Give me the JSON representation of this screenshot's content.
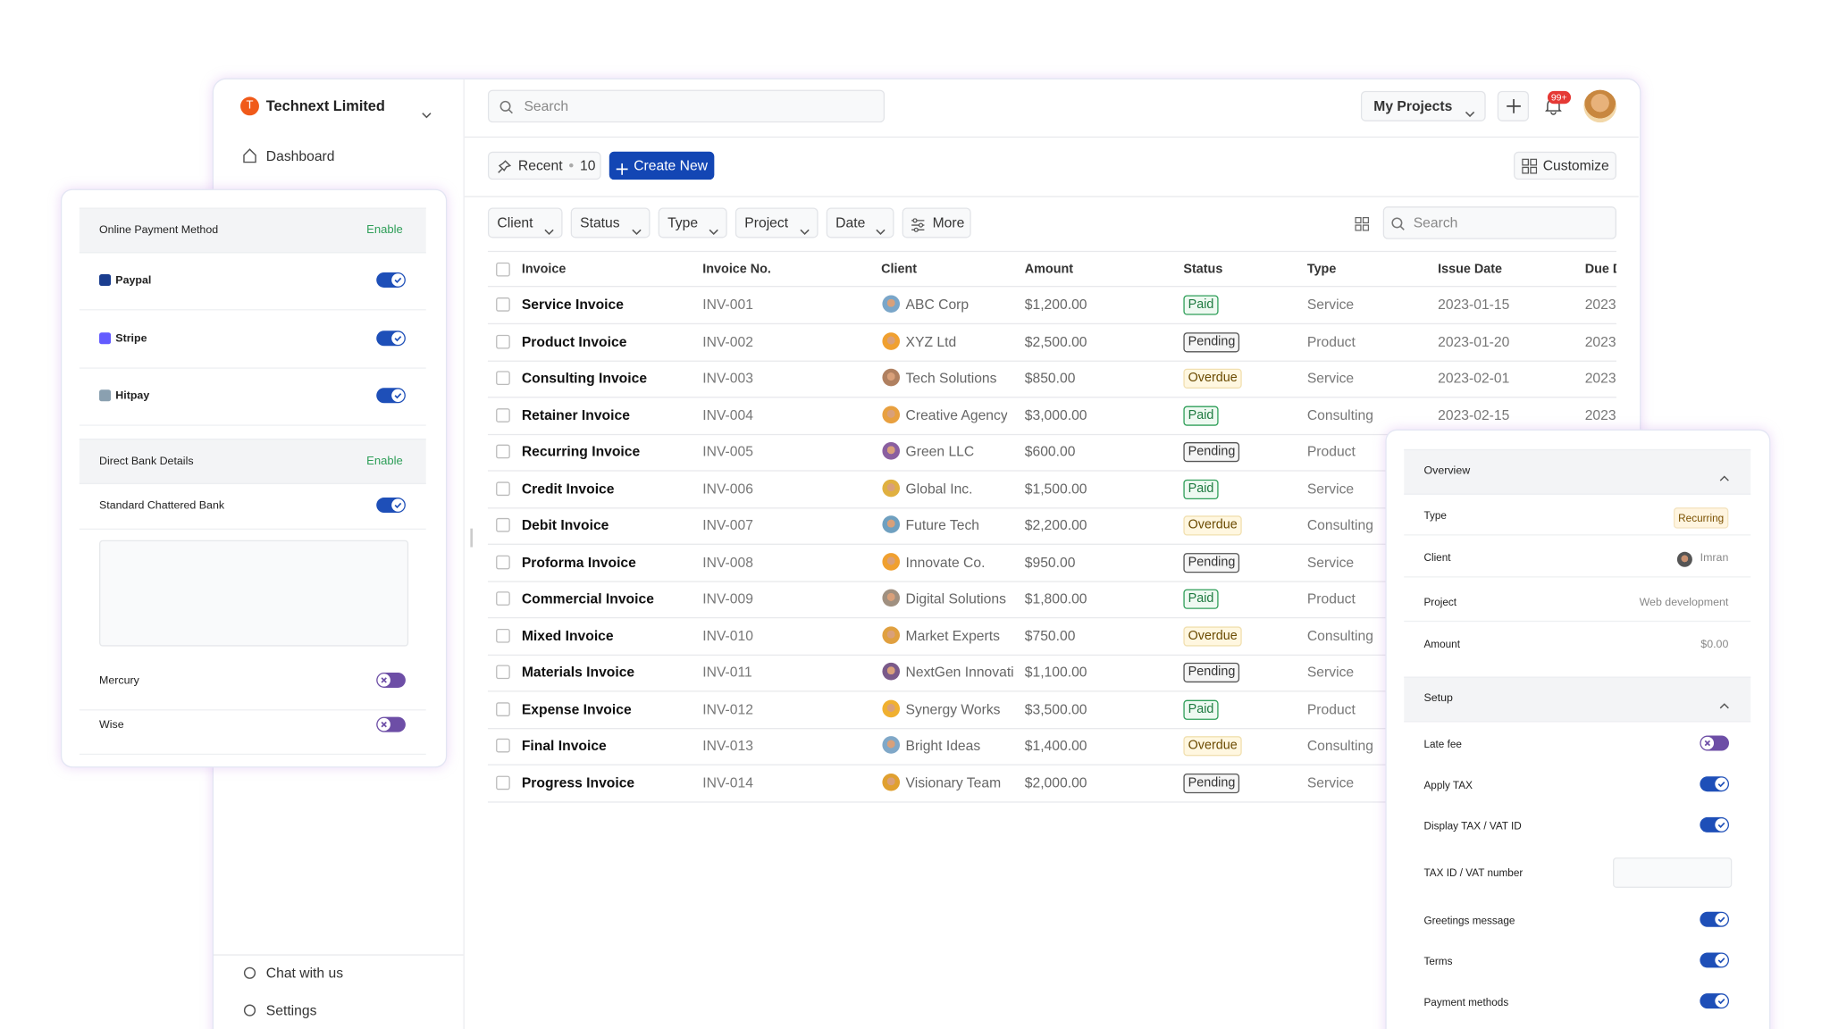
{
  "sidebar": {
    "org_initial": "T",
    "org": "Technext Limited",
    "nav": [
      "Dashboard"
    ],
    "footer": [
      "Chat with us",
      "Settings"
    ]
  },
  "topbar": {
    "search": "Search",
    "projects": "My Projects",
    "badge": "99+"
  },
  "toolbar": {
    "recent": "Recent",
    "recent_count": "10",
    "create": "Create New",
    "customize": "Customize"
  },
  "filters": [
    "Client",
    "Status",
    "Type",
    "Project",
    "Date",
    "More"
  ],
  "filter_search": "Search",
  "table": {
    "columns": [
      "Invoice",
      "Invoice No.",
      "Client",
      "Amount",
      "Status",
      "Type",
      "Issue Date",
      "Due Date"
    ],
    "rows": [
      [
        "Service Invoice",
        "INV-001",
        "ABC Corp",
        "$1,200.00",
        "Paid",
        "Service",
        "2023-01-15",
        "2023"
      ],
      [
        "Product Invoice",
        "INV-002",
        "XYZ Ltd",
        "$2,500.00",
        "Pending",
        "Product",
        "2023-01-20",
        "2023"
      ],
      [
        "Consulting Invoice",
        "INV-003",
        "Tech Solutions",
        "$850.00",
        "Overdue",
        "Service",
        "2023-02-01",
        "2023"
      ],
      [
        "Retainer Invoice",
        "INV-004",
        "Creative Agency",
        "$3,000.00",
        "Paid",
        "Consulting",
        "2023-02-15",
        "2023"
      ],
      [
        "Recurring Invoice",
        "INV-005",
        "Green LLC",
        "$600.00",
        "Pending",
        "Product"
      ],
      [
        "Credit Invoice",
        "INV-006",
        "Global Inc.",
        "$1,500.00",
        "Paid",
        "Service"
      ],
      [
        "Debit Invoice",
        "INV-007",
        "Future Tech",
        "$2,200.00",
        "Overdue",
        "Consulting"
      ],
      [
        "Proforma Invoice",
        "INV-008",
        "Innovate Co.",
        "$950.00",
        "Pending",
        "Service"
      ],
      [
        "Commercial Invoice",
        "INV-009",
        "Digital Solutions",
        "$1,800.00",
        "Paid",
        "Product"
      ],
      [
        "Mixed Invoice",
        "INV-010",
        "Market Experts",
        "$750.00",
        "Overdue",
        "Consulting"
      ],
      [
        "Materials Invoice",
        "INV-011",
        "NextGen Innovati",
        "$1,100.00",
        "Pending",
        "Service"
      ],
      [
        "Expense Invoice",
        "INV-012",
        "Synergy Works",
        "$3,500.00",
        "Paid",
        "Product"
      ],
      [
        "Final Invoice",
        "INV-013",
        "Bright Ideas",
        "$1,400.00",
        "Overdue",
        "Consulting"
      ],
      [
        "Progress Invoice",
        "INV-014",
        "Visionary Team",
        "$2,000.00",
        "Pending",
        "Service"
      ]
    ]
  },
  "payment_panel": {
    "sections": [
      {
        "title": "Online Payment Method",
        "action": "Enable",
        "items": [
          {
            "label": "Paypal",
            "enabled": true
          },
          {
            "label": "Stripe",
            "enabled": true
          },
          {
            "label": "Hitpay",
            "enabled": true
          }
        ]
      },
      {
        "title": "Direct Bank Details",
        "action": "Enable",
        "items": [
          {
            "label": "Standard Chattered Bank",
            "enabled": true
          },
          {
            "label": "Mercury",
            "enabled": false
          },
          {
            "label": "Wise",
            "enabled": false
          }
        ]
      }
    ]
  },
  "overview_panel": {
    "overview": {
      "title": "Overview",
      "fields": [
        [
          "Type",
          "Recurring"
        ],
        [
          "Client",
          "Imran"
        ],
        [
          "Project",
          "Web development"
        ],
        [
          "Amount",
          "$0.00"
        ]
      ]
    },
    "setup": {
      "title": "Setup",
      "items": [
        {
          "label": "Late fee",
          "enabled": false
        },
        {
          "label": "Apply TAX",
          "enabled": true
        },
        {
          "label": "Display TAX / VAT ID",
          "enabled": true
        },
        {
          "label": "TAX ID / VAT number",
          "input": true
        },
        {
          "label": "Greetings message",
          "enabled": true
        },
        {
          "label": "Terms",
          "enabled": true
        },
        {
          "label": "Payment methods",
          "enabled": true
        }
      ]
    }
  }
}
